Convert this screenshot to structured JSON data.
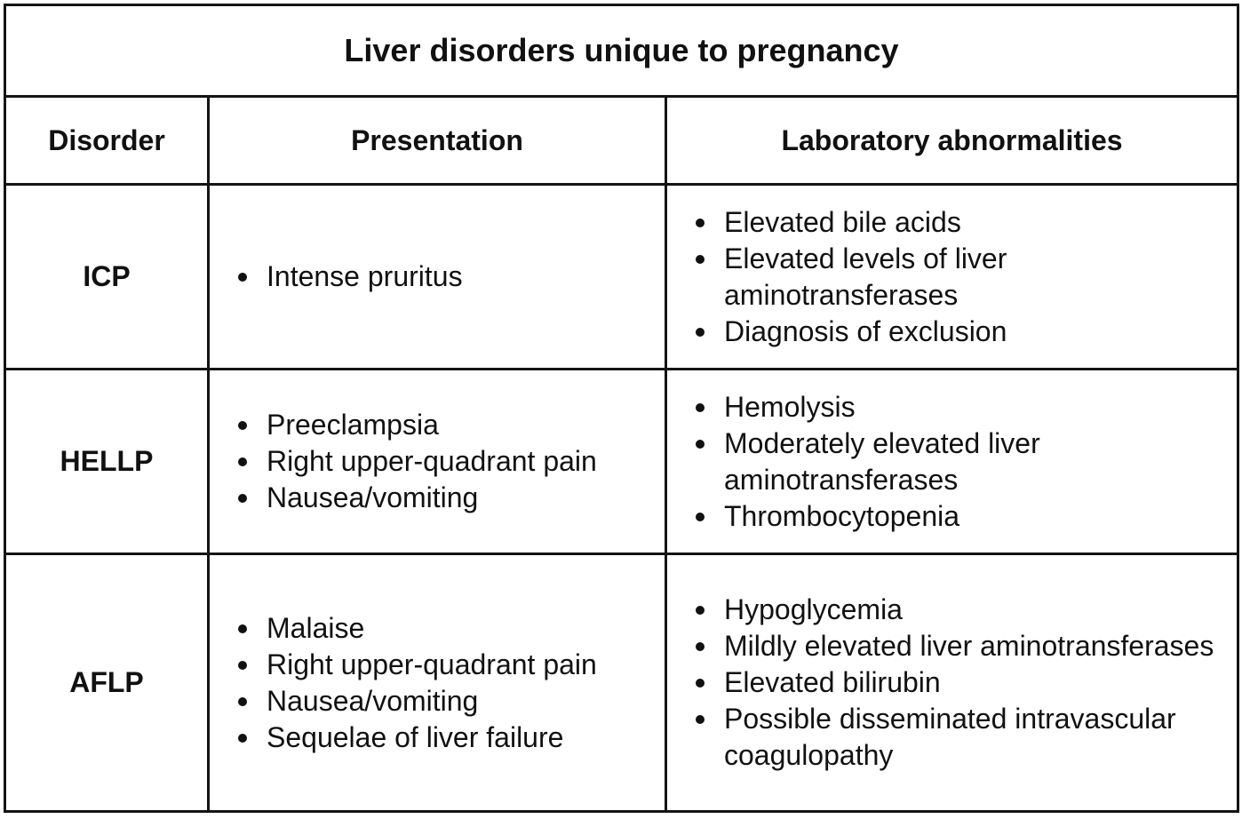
{
  "table": {
    "title": "Liver disorders unique to pregnancy",
    "headers": {
      "disorder": "Disorder",
      "presentation": "Presentation",
      "lab": "Laboratory abnormalities"
    },
    "rows": [
      {
        "disorder": "ICP",
        "presentation": [
          "Intense pruritus"
        ],
        "lab": [
          "Elevated bile acids",
          "Elevated levels of liver aminotransferases",
          "Diagnosis of exclusion"
        ]
      },
      {
        "disorder": "HELLP",
        "presentation": [
          "Preeclampsia",
          "Right upper-quadrant pain",
          "Nausea/vomiting"
        ],
        "lab": [
          "Hemolysis",
          "Moderately elevated liver aminotransferases",
          "Thrombocytopenia"
        ]
      },
      {
        "disorder": "AFLP",
        "presentation": [
          "Malaise",
          "Right upper-quadrant pain",
          "Nausea/vomiting",
          "Sequelae of liver failure"
        ],
        "lab": [
          "Hypoglycemia",
          "Mildly elevated liver aminotransferases",
          "Elevated bilirubin",
          "Possible disseminated intravascular coagulopathy"
        ]
      }
    ]
  }
}
